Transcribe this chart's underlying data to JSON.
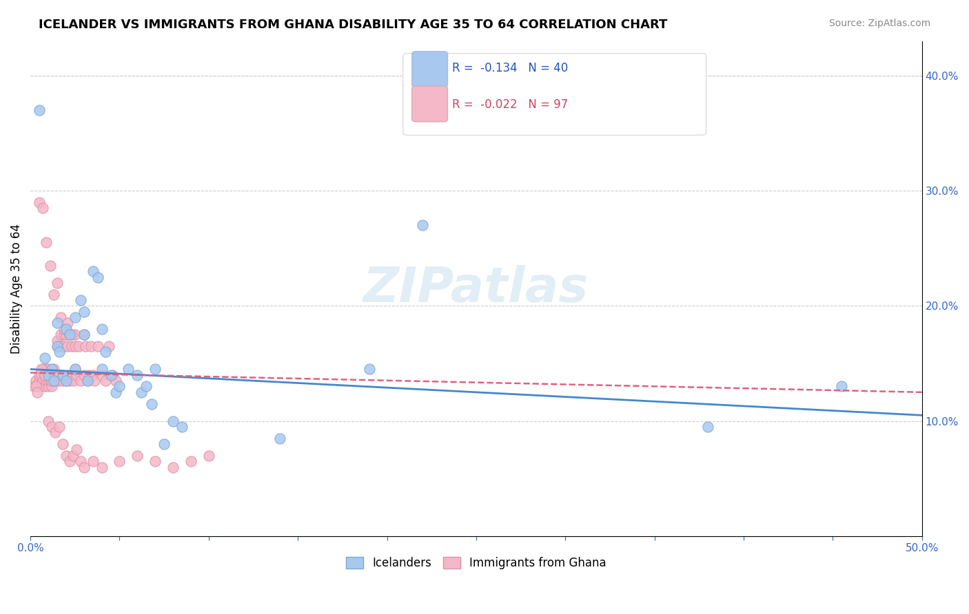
{
  "title": "ICELANDER VS IMMIGRANTS FROM GHANA DISABILITY AGE 35 TO 64 CORRELATION CHART",
  "source": "Source: ZipAtlas.com",
  "ylabel": "Disability Age 35 to 64",
  "right_yticks": [
    0.1,
    0.2,
    0.3,
    0.4
  ],
  "right_yticklabels": [
    "10.0%",
    "20.0%",
    "30.0%",
    "40.0%"
  ],
  "xlim": [
    0.0,
    0.5
  ],
  "ylim": [
    0.0,
    0.43
  ],
  "watermark": "ZIPatlas",
  "blue_color": "#a8c8f0",
  "blue_edge": "#7aaad0",
  "pink_color": "#f4b8c8",
  "pink_edge": "#e090a8",
  "trend_blue": "#4488cc",
  "trend_pink": "#e06080",
  "icelanders_x": [
    0.005,
    0.008,
    0.01,
    0.012,
    0.013,
    0.015,
    0.015,
    0.016,
    0.018,
    0.02,
    0.02,
    0.022,
    0.025,
    0.025,
    0.028,
    0.03,
    0.03,
    0.032,
    0.035,
    0.038,
    0.04,
    0.04,
    0.042,
    0.045,
    0.048,
    0.05,
    0.055,
    0.06,
    0.062,
    0.065,
    0.068,
    0.07,
    0.075,
    0.08,
    0.085,
    0.14,
    0.19,
    0.22,
    0.38,
    0.455
  ],
  "icelanders_y": [
    0.37,
    0.155,
    0.14,
    0.145,
    0.135,
    0.185,
    0.165,
    0.16,
    0.14,
    0.135,
    0.18,
    0.175,
    0.19,
    0.145,
    0.205,
    0.175,
    0.195,
    0.135,
    0.23,
    0.225,
    0.18,
    0.145,
    0.16,
    0.14,
    0.125,
    0.13,
    0.145,
    0.14,
    0.125,
    0.13,
    0.115,
    0.145,
    0.08,
    0.1,
    0.095,
    0.085,
    0.145,
    0.27,
    0.095,
    0.13
  ],
  "ghana_x": [
    0.002,
    0.003,
    0.004,
    0.005,
    0.005,
    0.006,
    0.006,
    0.007,
    0.007,
    0.008,
    0.008,
    0.009,
    0.009,
    0.01,
    0.01,
    0.01,
    0.01,
    0.011,
    0.011,
    0.012,
    0.012,
    0.013,
    0.013,
    0.014,
    0.014,
    0.015,
    0.015,
    0.016,
    0.016,
    0.017,
    0.017,
    0.018,
    0.018,
    0.019,
    0.019,
    0.02,
    0.02,
    0.021,
    0.021,
    0.022,
    0.022,
    0.023,
    0.023,
    0.024,
    0.025,
    0.025,
    0.026,
    0.027,
    0.028,
    0.03,
    0.03,
    0.031,
    0.032,
    0.033,
    0.034,
    0.035,
    0.036,
    0.038,
    0.04,
    0.042,
    0.044,
    0.046,
    0.048,
    0.005,
    0.007,
    0.009,
    0.011,
    0.013,
    0.015,
    0.017,
    0.019,
    0.021,
    0.023,
    0.025,
    0.003,
    0.004,
    0.006,
    0.008,
    0.01,
    0.012,
    0.014,
    0.016,
    0.018,
    0.02,
    0.022,
    0.024,
    0.026,
    0.028,
    0.03,
    0.035,
    0.04,
    0.05,
    0.06,
    0.07,
    0.08,
    0.09,
    0.1
  ],
  "ghana_y": [
    0.13,
    0.135,
    0.13,
    0.135,
    0.14,
    0.13,
    0.14,
    0.135,
    0.145,
    0.13,
    0.14,
    0.135,
    0.145,
    0.13,
    0.135,
    0.14,
    0.145,
    0.135,
    0.14,
    0.13,
    0.135,
    0.14,
    0.145,
    0.135,
    0.14,
    0.165,
    0.17,
    0.135,
    0.14,
    0.165,
    0.175,
    0.135,
    0.14,
    0.165,
    0.175,
    0.135,
    0.175,
    0.14,
    0.165,
    0.135,
    0.175,
    0.14,
    0.165,
    0.135,
    0.175,
    0.165,
    0.14,
    0.165,
    0.135,
    0.175,
    0.14,
    0.165,
    0.135,
    0.14,
    0.165,
    0.14,
    0.135,
    0.165,
    0.14,
    0.135,
    0.165,
    0.14,
    0.135,
    0.29,
    0.285,
    0.255,
    0.235,
    0.21,
    0.22,
    0.19,
    0.18,
    0.185,
    0.175,
    0.145,
    0.13,
    0.125,
    0.145,
    0.14,
    0.1,
    0.095,
    0.09,
    0.095,
    0.08,
    0.07,
    0.065,
    0.07,
    0.075,
    0.065,
    0.06,
    0.065,
    0.06,
    0.065,
    0.07,
    0.065,
    0.06,
    0.065,
    0.07
  ]
}
